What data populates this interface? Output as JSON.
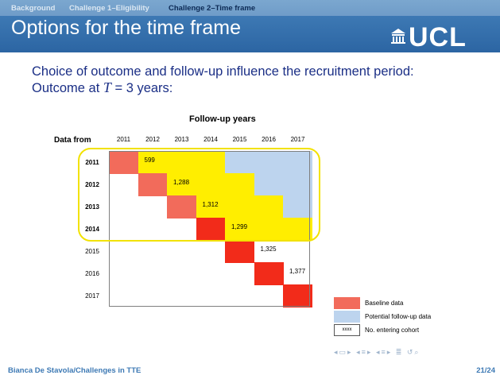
{
  "nav": {
    "items": [
      {
        "label": "Background",
        "active": false
      },
      {
        "label": "Challenge 1–Eligibility",
        "active": false
      },
      {
        "label": "Challenge 2–Time frame",
        "active": true
      }
    ]
  },
  "slide": {
    "title": "Options for the time frame",
    "logo_text": "UCL",
    "intro_line1": "Choice of outcome and follow-up influence the recruitment period:",
    "intro_line2_prefix": "Outcome at ",
    "intro_line2_var": "T",
    "intro_line2_suffix": " = 3 years:"
  },
  "table": {
    "title": "Follow-up years",
    "row_header": "Data from",
    "years": [
      "2011",
      "2012",
      "2013",
      "2014",
      "2015",
      "2016",
      "2017"
    ],
    "rows": [
      {
        "label": "2011",
        "entering": "599",
        "highlighted": true
      },
      {
        "label": "2012",
        "entering": "1,288",
        "highlighted": true
      },
      {
        "label": "2013",
        "entering": "1,312",
        "highlighted": true
      },
      {
        "label": "2014",
        "entering": "1,299",
        "highlighted": true
      },
      {
        "label": "2015",
        "entering": "1,325",
        "highlighted": false
      },
      {
        "label": "2016",
        "entering": "1,377",
        "highlighted": false
      },
      {
        "label": "2017",
        "entering": "",
        "highlighted": false
      }
    ],
    "outcome_years": 3,
    "colors": {
      "baseline": "#f26b5b",
      "baseline_strong": "#f22b1a",
      "followup_used": "#ffee00",
      "followup_potential": "#bdd4ee",
      "highlight_frame": "#f2e200"
    }
  },
  "legend": {
    "items": [
      {
        "label": "Baseline data",
        "color": "#f26b5b"
      },
      {
        "label": "Potential follow-up data",
        "color": "#bdd4ee"
      },
      {
        "label": "No. entering cohort",
        "swatch_text": "xxxx"
      }
    ]
  },
  "footer": {
    "author": "Bianca De Stavola/Challenges in TTE",
    "page": "21/24"
  },
  "beamer_nav_icons": [
    "nav-left-icon",
    "nav-frame-icon",
    "nav-subsection-icon",
    "nav-section-icon",
    "nav-align-icon",
    "nav-search-icon"
  ]
}
